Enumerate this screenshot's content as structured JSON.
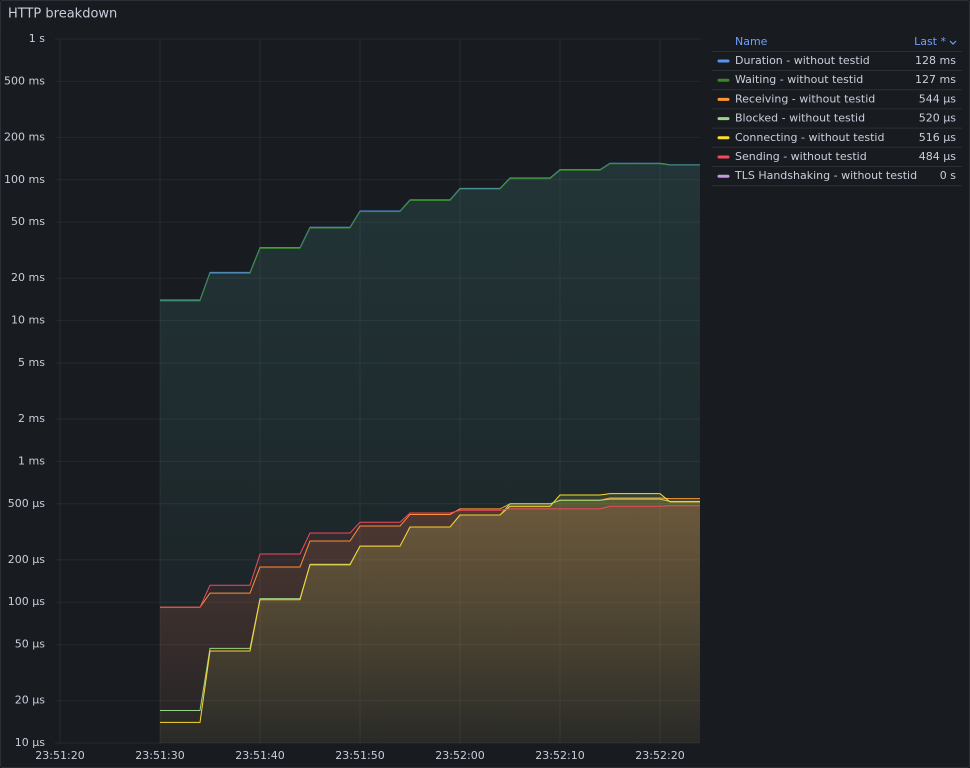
{
  "chart_data": {
    "type": "line",
    "title": "HTTP breakdown",
    "log_scale": true,
    "grid": true,
    "legend_position": "right",
    "legend_headers": [
      "Name",
      "Last *"
    ],
    "x": [
      "23:51:30",
      "23:51:34",
      "23:51:35",
      "23:51:39",
      "23:51:40",
      "23:51:44",
      "23:51:45",
      "23:51:49",
      "23:51:50",
      "23:51:54",
      "23:51:55",
      "23:51:59",
      "23:52:00",
      "23:52:04",
      "23:52:05",
      "23:52:09",
      "23:52:10",
      "23:52:14",
      "23:52:15",
      "23:52:20",
      "23:52:21",
      "23:52:24"
    ],
    "xlim": [
      "23:51:19",
      "23:52:24"
    ],
    "xticks": [
      "23:51:20",
      "23:51:30",
      "23:51:40",
      "23:51:50",
      "23:52:00",
      "23:52:10",
      "23:52:20"
    ],
    "ylim": [
      0.01,
      1000
    ],
    "yticks": [
      {
        "value": 1000,
        "label": "1 s"
      },
      {
        "value": 500,
        "label": "500 ms"
      },
      {
        "value": 200,
        "label": "200 ms"
      },
      {
        "value": 100,
        "label": "100 ms"
      },
      {
        "value": 50,
        "label": "50 ms"
      },
      {
        "value": 20,
        "label": "20 ms"
      },
      {
        "value": 10,
        "label": "10 ms"
      },
      {
        "value": 5,
        "label": "5 ms"
      },
      {
        "value": 2,
        "label": "2 ms"
      },
      {
        "value": 1,
        "label": "1 ms"
      },
      {
        "value": 0.5,
        "label": "500 µs"
      },
      {
        "value": 0.2,
        "label": "200 µs"
      },
      {
        "value": 0.1,
        "label": "100 µs"
      },
      {
        "value": 0.05,
        "label": "50 µs"
      },
      {
        "value": 0.02,
        "label": "20 µs"
      },
      {
        "value": 0.01,
        "label": "10 µs"
      }
    ],
    "series": [
      {
        "name": "Duration - without testid",
        "color": "#5794f2",
        "last": "128 ms",
        "values": [
          14,
          14,
          22,
          22,
          33,
          33,
          46,
          46,
          60,
          60,
          72,
          72,
          87,
          87,
          103,
          103,
          118,
          118,
          131,
          131,
          128,
          128
        ]
      },
      {
        "name": "Waiting - without testid",
        "color": "#37872d",
        "last": "127 ms",
        "values": [
          13.8,
          13.8,
          21.7,
          21.7,
          32.6,
          32.6,
          45.5,
          45.5,
          59.4,
          59.4,
          71.3,
          71.3,
          86.1,
          86.1,
          102,
          102,
          117,
          117,
          130,
          130,
          127,
          127
        ]
      },
      {
        "name": "Receiving - without testid",
        "color": "#ff9830",
        "last": "544 µs",
        "values": [
          0.092,
          0.092,
          0.116,
          0.116,
          0.178,
          0.178,
          0.272,
          0.272,
          0.348,
          0.348,
          0.42,
          0.42,
          0.46,
          0.46,
          0.5,
          0.5,
          0.53,
          0.53,
          0.55,
          0.55,
          0.544,
          0.544
        ]
      },
      {
        "name": "Blocked - without testid",
        "color": "#96d98d",
        "last": "520 µs",
        "values": [
          0.017,
          0.017,
          0.047,
          0.047,
          0.106,
          0.106,
          0.186,
          0.186,
          0.25,
          0.25,
          0.342,
          0.342,
          0.416,
          0.416,
          0.5,
          0.5,
          0.53,
          0.53,
          0.54,
          0.54,
          0.52,
          0.52
        ]
      },
      {
        "name": "Connecting - without testid",
        "color": "#fade2a",
        "last": "516 µs",
        "values": [
          0.014,
          0.014,
          0.045,
          0.045,
          0.104,
          0.104,
          0.184,
          0.184,
          0.25,
          0.25,
          0.342,
          0.342,
          0.416,
          0.416,
          0.48,
          0.48,
          0.577,
          0.577,
          0.59,
          0.59,
          0.516,
          0.516
        ]
      },
      {
        "name": "Sending - without testid",
        "color": "#f2495c",
        "last": "484 µs",
        "values": [
          0.092,
          0.092,
          0.132,
          0.132,
          0.22,
          0.22,
          0.31,
          0.31,
          0.37,
          0.37,
          0.43,
          0.43,
          0.45,
          0.45,
          0.46,
          0.46,
          0.46,
          0.46,
          0.48,
          0.48,
          0.484,
          0.484
        ]
      },
      {
        "name": "TLS Handshaking - without testid",
        "color": "#ca95e5",
        "last": "0 s",
        "values": [
          null,
          null,
          null,
          null,
          null,
          null,
          null,
          null,
          null,
          null,
          null,
          null,
          null,
          null,
          null,
          null,
          null,
          null,
          null,
          null,
          null,
          null
        ]
      }
    ]
  }
}
